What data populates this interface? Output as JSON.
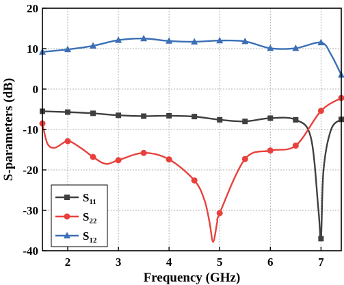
{
  "chart_data": {
    "type": "line",
    "title": "",
    "xlabel": "Frequency (GHz)",
    "ylabel": "S-parameters (dB)",
    "xlim": [
      1.5,
      7.4
    ],
    "ylim": [
      -40,
      20
    ],
    "xticks": [
      2,
      3,
      4,
      5,
      6,
      7
    ],
    "yticks": [
      -40,
      -30,
      -20,
      -10,
      0,
      10,
      20
    ],
    "grid": true,
    "legend_position": "bottom-left",
    "series": [
      {
        "name": "S11",
        "label_main": "S",
        "label_sub": "11",
        "color": "#404040",
        "marker": "square",
        "x": [
          1.5,
          2.0,
          2.5,
          3.0,
          3.5,
          4.0,
          4.5,
          5.0,
          5.5,
          6.0,
          6.5,
          6.8,
          6.95,
          7.0,
          7.05,
          7.2,
          7.4
        ],
        "y": [
          -5.5,
          -5.7,
          -6.0,
          -6.5,
          -6.7,
          -6.6,
          -6.8,
          -7.6,
          -8.0,
          -7.2,
          -7.6,
          -12,
          -30,
          -37,
          -20,
          -10,
          -7.5
        ],
        "marker_x": [
          1.5,
          2.0,
          2.5,
          3.0,
          3.5,
          4.0,
          4.5,
          5.0,
          5.5,
          6.0,
          6.5,
          7.0,
          7.4
        ]
      },
      {
        "name": "S22",
        "label_main": "S",
        "label_sub": "22",
        "color": "#e8413c",
        "marker": "circle",
        "x": [
          1.5,
          1.6,
          1.75,
          2.0,
          2.25,
          2.5,
          2.75,
          3.0,
          3.5,
          4.0,
          4.5,
          4.7,
          4.8,
          4.87,
          4.95,
          5.0,
          5.5,
          6.0,
          6.5,
          7.0,
          7.4
        ],
        "y": [
          -8.5,
          -13.5,
          -14.5,
          -12.9,
          -14.5,
          -16.8,
          -18.5,
          -17.6,
          -15.8,
          -17.4,
          -22.6,
          -27.5,
          -33,
          -37.8,
          -33,
          -30.7,
          -17.3,
          -15.2,
          -14.0,
          -5.4,
          -2.2
        ],
        "marker_x": [
          1.5,
          2.0,
          2.5,
          3.0,
          3.5,
          4.0,
          4.5,
          5.0,
          5.5,
          6.0,
          6.5,
          7.0,
          7.4
        ]
      },
      {
        "name": "S12",
        "label_main": "S",
        "label_sub": "12",
        "color": "#3b6fb6",
        "marker": "triangle",
        "x": [
          1.5,
          2.0,
          2.5,
          3.0,
          3.5,
          4.0,
          4.5,
          5.0,
          5.5,
          6.0,
          6.5,
          7.0,
          7.2,
          7.4
        ],
        "y": [
          9.2,
          9.8,
          10.7,
          12.1,
          12.5,
          11.9,
          11.7,
          12.0,
          11.8,
          10.1,
          10.1,
          11.5,
          8.5,
          3.5
        ],
        "marker_x": [
          1.5,
          2.0,
          2.5,
          3.0,
          3.5,
          4.0,
          4.5,
          5.0,
          5.5,
          6.0,
          6.5,
          7.0,
          7.4
        ]
      }
    ]
  }
}
